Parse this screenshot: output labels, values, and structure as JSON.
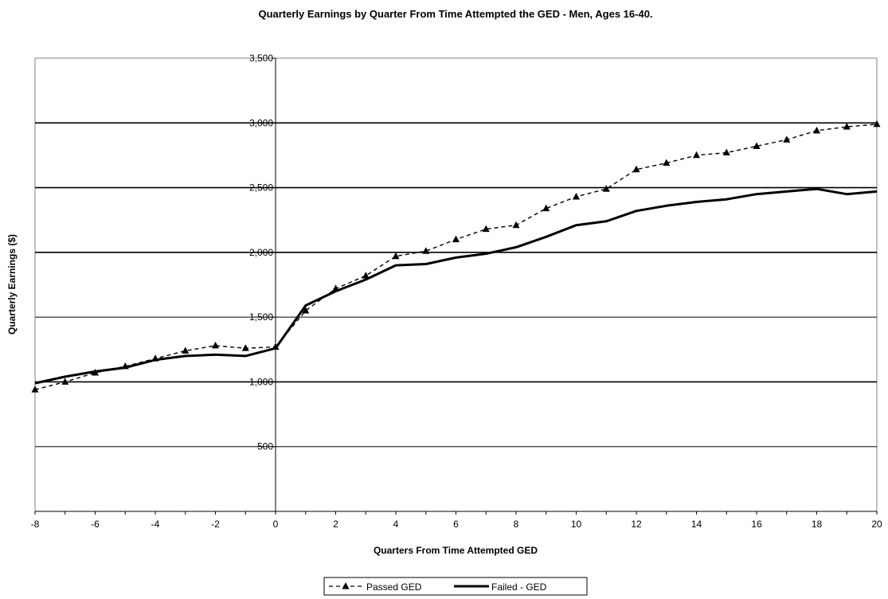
{
  "chart_data": {
    "type": "line",
    "title": "Quarterly Earnings by Quarter From Time Attempted the GED - Men, Ages 16-40.",
    "xlabel": "Quarters From Time Attempted GED",
    "ylabel": "Quarterly Earnings ($)",
    "xlim": [
      -8,
      20
    ],
    "ylim": [
      0,
      3500
    ],
    "x_ticks": [
      -8,
      -6,
      -4,
      -2,
      0,
      2,
      4,
      6,
      8,
      10,
      12,
      14,
      16,
      18,
      20
    ],
    "x_tick_labels": [
      "-8",
      "-6",
      "-4",
      "-2",
      "0",
      "2",
      "4",
      "6",
      "8",
      "10",
      "12",
      "14",
      "16",
      "18",
      "20"
    ],
    "y_ticks": [
      500,
      1000,
      1500,
      2000,
      2500,
      3000,
      3500
    ],
    "y_tick_labels": [
      "500",
      "1,000",
      "1,500",
      "2,000",
      "2,500",
      "3,000",
      "3,500"
    ],
    "grid": true,
    "legend_position": "bottom-center",
    "series": [
      {
        "name": "Passed GED",
        "style": "dashed",
        "marker": "triangle",
        "color": "#000000",
        "x": [
          -8,
          -7,
          -6,
          -5,
          -4,
          -3,
          -2,
          -1,
          0,
          1,
          2,
          3,
          4,
          5,
          6,
          7,
          8,
          9,
          10,
          11,
          12,
          13,
          14,
          15,
          16,
          17,
          18,
          19,
          20
        ],
        "values": [
          940,
          1000,
          1070,
          1120,
          1180,
          1240,
          1280,
          1260,
          1270,
          1550,
          1720,
          1820,
          1970,
          2010,
          2100,
          2180,
          2210,
          2340,
          2430,
          2490,
          2640,
          2690,
          2750,
          2770,
          2820,
          2870,
          2940,
          2970,
          2990
        ]
      },
      {
        "name": "Failed - GED",
        "style": "solid",
        "marker": "none",
        "color": "#000000",
        "x": [
          -8,
          -7,
          -6,
          -5,
          -4,
          -3,
          -2,
          -1,
          0,
          1,
          2,
          3,
          4,
          5,
          6,
          7,
          8,
          9,
          10,
          11,
          12,
          13,
          14,
          15,
          16,
          17,
          18,
          19,
          20
        ],
        "values": [
          990,
          1040,
          1080,
          1110,
          1170,
          1200,
          1210,
          1200,
          1260,
          1590,
          1700,
          1790,
          1900,
          1910,
          1960,
          1990,
          2040,
          2120,
          2210,
          2240,
          2320,
          2360,
          2390,
          2410,
          2450,
          2470,
          2490,
          2450,
          2470
        ]
      }
    ]
  }
}
